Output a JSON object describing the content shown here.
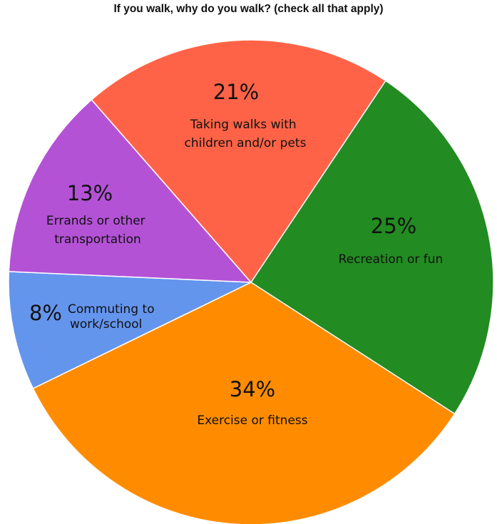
{
  "chart_data": {
    "type": "pie",
    "title": "If you walk, why do you walk? (check all that apply)",
    "slices": [
      {
        "label": "Recreation or fun",
        "value": 25,
        "percent_label": "25%",
        "color": "#228B22"
      },
      {
        "label": "Exercise or fitness",
        "value": 34,
        "percent_label": "34%",
        "color": "#FF8C00"
      },
      {
        "label": "Commuting to work/school",
        "value": 8,
        "percent_label": "8%",
        "color": "#6495ED"
      },
      {
        "label": "Errands or other transportation",
        "value": 13,
        "percent_label": "13%",
        "color": "#B452D6"
      },
      {
        "label": "Taking walks with children and/or pets",
        "value": 21,
        "percent_label": "21%",
        "color": "#FF6347"
      }
    ]
  }
}
